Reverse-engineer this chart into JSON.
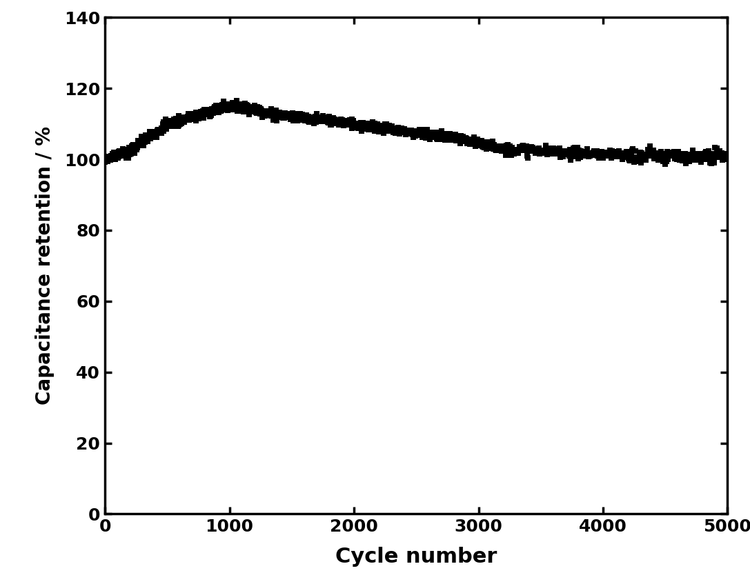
{
  "xlabel": "Cycle number",
  "ylabel": "Capacitance retention / %",
  "xlim": [
    0,
    5000
  ],
  "ylim": [
    0,
    140
  ],
  "xticks": [
    0,
    1000,
    2000,
    3000,
    4000,
    5000
  ],
  "yticks": [
    0,
    20,
    40,
    60,
    80,
    100,
    120,
    140
  ],
  "marker": "s",
  "marker_size": 36,
  "color": "#000000",
  "xlabel_fontsize": 22,
  "ylabel_fontsize": 20,
  "tick_fontsize": 18,
  "tick_fontweight": "bold",
  "axis_linewidth": 2.5,
  "figure_width": 10.87,
  "figure_height": 8.47,
  "dpi": 100
}
